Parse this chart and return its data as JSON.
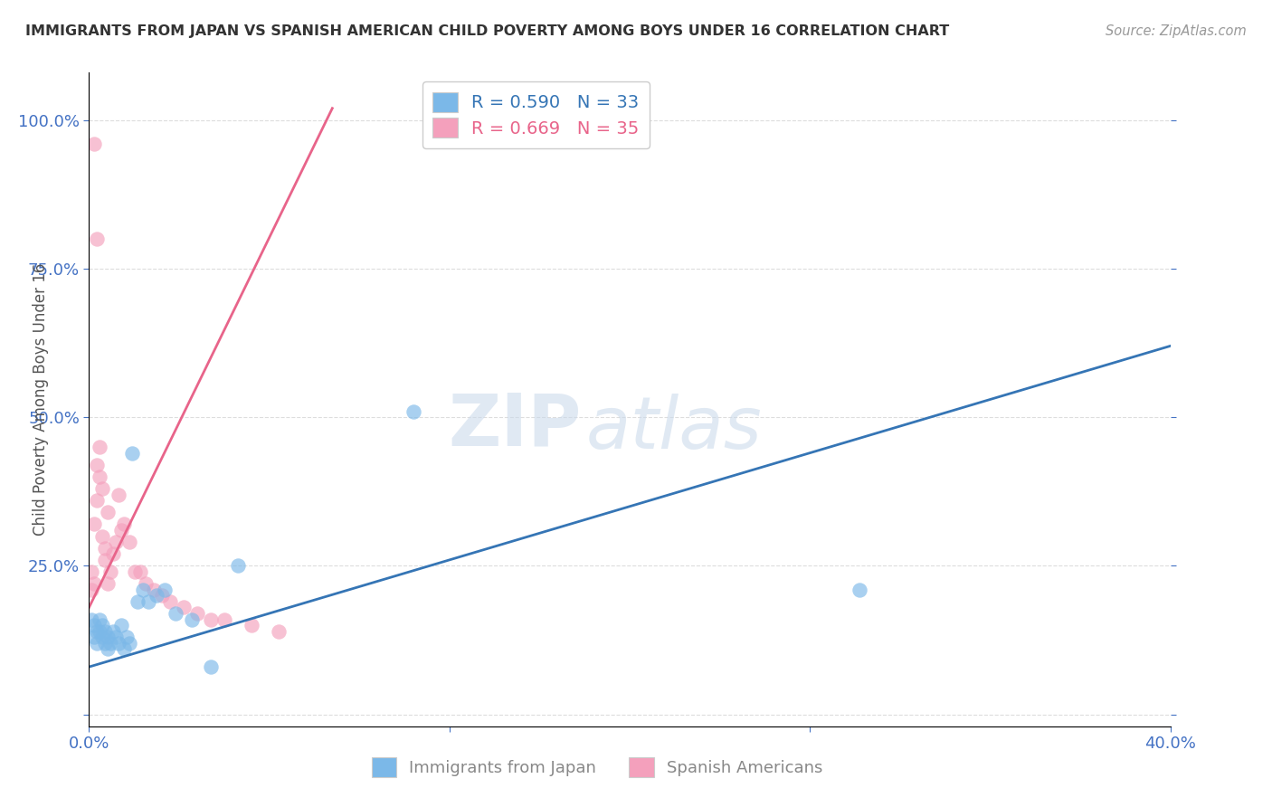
{
  "title": "IMMIGRANTS FROM JAPAN VS SPANISH AMERICAN CHILD POVERTY AMONG BOYS UNDER 16 CORRELATION CHART",
  "source": "Source: ZipAtlas.com",
  "ylabel": "Child Poverty Among Boys Under 16",
  "xlim": [
    0.0,
    0.4
  ],
  "ylim": [
    -0.02,
    1.08
  ],
  "xtick_positions": [
    0.0,
    0.1333,
    0.2667,
    0.4
  ],
  "xtick_labels": [
    "0.0%",
    "",
    "",
    "40.0%"
  ],
  "ytick_positions": [
    0.0,
    0.25,
    0.5,
    0.75,
    1.0
  ],
  "ytick_labels": [
    "",
    "25.0%",
    "50.0%",
    "75.0%",
    "100.0%"
  ],
  "blue_color": "#7bb8e8",
  "pink_color": "#f4a0bc",
  "blue_line_color": "#3575b5",
  "pink_line_color": "#e8648a",
  "R_blue": 0.59,
  "N_blue": 33,
  "R_pink": 0.669,
  "N_pink": 35,
  "legend_label_blue": "Immigrants from Japan",
  "legend_label_pink": "Spanish Americans",
  "blue_scatter_x": [
    0.001,
    0.002,
    0.002,
    0.003,
    0.003,
    0.004,
    0.004,
    0.005,
    0.005,
    0.006,
    0.006,
    0.007,
    0.007,
    0.008,
    0.009,
    0.01,
    0.011,
    0.012,
    0.013,
    0.014,
    0.015,
    0.016,
    0.018,
    0.02,
    0.022,
    0.025,
    0.028,
    0.032,
    0.038,
    0.045,
    0.055,
    0.12,
    0.285
  ],
  "blue_scatter_y": [
    0.16,
    0.15,
    0.13,
    0.14,
    0.12,
    0.16,
    0.14,
    0.15,
    0.13,
    0.14,
    0.12,
    0.13,
    0.11,
    0.12,
    0.14,
    0.13,
    0.12,
    0.15,
    0.11,
    0.13,
    0.12,
    0.44,
    0.19,
    0.21,
    0.19,
    0.2,
    0.21,
    0.17,
    0.16,
    0.08,
    0.25,
    0.51,
    0.21
  ],
  "pink_scatter_x": [
    0.001,
    0.001,
    0.002,
    0.002,
    0.003,
    0.003,
    0.004,
    0.004,
    0.005,
    0.005,
    0.006,
    0.006,
    0.007,
    0.007,
    0.008,
    0.009,
    0.01,
    0.011,
    0.012,
    0.013,
    0.015,
    0.017,
    0.019,
    0.021,
    0.024,
    0.027,
    0.03,
    0.035,
    0.04,
    0.045,
    0.05,
    0.06,
    0.07,
    0.003,
    0.002
  ],
  "pink_scatter_y": [
    0.21,
    0.24,
    0.32,
    0.22,
    0.42,
    0.36,
    0.4,
    0.45,
    0.38,
    0.3,
    0.28,
    0.26,
    0.22,
    0.34,
    0.24,
    0.27,
    0.29,
    0.37,
    0.31,
    0.32,
    0.29,
    0.24,
    0.24,
    0.22,
    0.21,
    0.2,
    0.19,
    0.18,
    0.17,
    0.16,
    0.16,
    0.15,
    0.14,
    0.8,
    0.96
  ],
  "blue_line_x": [
    0.0,
    0.4
  ],
  "blue_line_y": [
    0.08,
    0.62
  ],
  "pink_line_x": [
    0.0,
    0.09
  ],
  "pink_line_y": [
    0.18,
    1.02
  ]
}
